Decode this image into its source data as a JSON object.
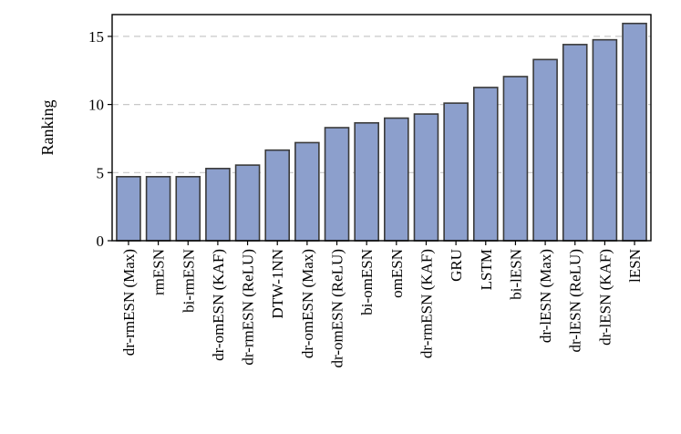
{
  "chart_data": {
    "type": "bar",
    "ylabel": "Ranking",
    "xlabel": "",
    "ylim": [
      0,
      16.6
    ],
    "yticks": [
      0,
      5,
      10,
      15
    ],
    "grid": "y-dashed",
    "bar_color": "#8c9fcc",
    "categories": [
      "dr-rmESN (Max)",
      "rmESN",
      "bi-rmESN",
      "dr-omESN (KAF)",
      "dr-rmESN (ReLU)",
      "DTW-1NN",
      "dr-omESN (Max)",
      "dr-omESN (ReLU)",
      "bi-omESN",
      "omESN",
      "dr-rmESN (KAF)",
      "GRU",
      "LSTM",
      "bi-lESN",
      "dr-lESN (Max)",
      "dr-lESN (ReLU)",
      "dr-lESN (KAF)",
      "lESN"
    ],
    "values": [
      4.7,
      4.7,
      4.7,
      5.3,
      5.55,
      6.65,
      7.2,
      8.3,
      8.65,
      9.0,
      9.3,
      10.1,
      11.25,
      12.05,
      13.3,
      14.4,
      14.75,
      15.95
    ]
  }
}
